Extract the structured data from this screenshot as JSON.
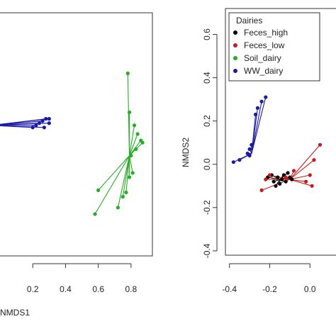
{
  "chart_data": [
    {
      "type": "scatter",
      "title": "",
      "xlabel": "NMDS1",
      "ylabel": "",
      "xlim": [
        0.0,
        0.9
      ],
      "ylim": [
        -0.42,
        0.7
      ],
      "xticks": [
        "0.2",
        "0.4",
        "0.6",
        "0.8"
      ],
      "xtick_values": [
        0.2,
        0.4,
        0.6,
        0.8
      ],
      "grid": false,
      "series": [
        {
          "color": "#1a1aa8",
          "centroid": [
            -0.05,
            0.18
          ],
          "points": [
            [
              0.3,
              0.21
            ],
            [
              0.28,
              0.21
            ],
            [
              0.26,
              0.2
            ],
            [
              0.24,
              0.19
            ],
            [
              0.22,
              0.18
            ],
            [
              0.27,
              0.17
            ],
            [
              0.2,
              0.17
            ],
            [
              0.3,
              0.19
            ]
          ]
        },
        {
          "color": "#22b022",
          "centroid": [
            0.79,
            0.04
          ],
          "points": [
            [
              0.78,
              0.42
            ],
            [
              0.79,
              0.24
            ],
            [
              0.82,
              0.18
            ],
            [
              0.84,
              0.14
            ],
            [
              0.86,
              0.11
            ],
            [
              0.87,
              0.1
            ],
            [
              0.83,
              0.07
            ],
            [
              0.8,
              0.04
            ],
            [
              0.81,
              -0.04
            ],
            [
              0.79,
              -0.06
            ],
            [
              0.6,
              -0.12
            ],
            [
              0.77,
              -0.13
            ],
            [
              0.75,
              -0.15
            ],
            [
              0.72,
              -0.2
            ],
            [
              0.58,
              -0.23
            ]
          ]
        }
      ]
    },
    {
      "type": "scatter",
      "title": "",
      "xlabel": "",
      "ylabel": "NMDS2",
      "xlim": [
        -0.42,
        0.08
      ],
      "ylim": [
        -0.42,
        0.7
      ],
      "xticks": [
        "-0.4",
        "-0.2",
        "0.0"
      ],
      "xtick_values": [
        -0.4,
        -0.2,
        0.0
      ],
      "yticks": [
        "-0.4",
        "-0.2",
        "0.0",
        "0.2",
        "0.4",
        "0.6"
      ],
      "ytick_values": [
        -0.4,
        -0.2,
        0.0,
        0.2,
        0.4,
        0.6
      ],
      "grid": false,
      "legend": {
        "title": "Dairies",
        "position": "top-left",
        "entries": [
          "Feces_high",
          "Feces_low",
          "Soil_dairy",
          "WW_dairy"
        ],
        "colors": [
          "#000000",
          "#cc1a1a",
          "#22b022",
          "#1a1aa8"
        ]
      },
      "series": [
        {
          "name": "Feces_high",
          "color": "#000000",
          "centroid": [
            -0.15,
            -0.07
          ],
          "points": [
            [
              -0.21,
              -0.06
            ],
            [
              -0.19,
              -0.05
            ],
            [
              -0.18,
              -0.08
            ],
            [
              -0.16,
              -0.06
            ],
            [
              -0.15,
              -0.09
            ],
            [
              -0.14,
              -0.07
            ],
            [
              -0.13,
              -0.05
            ],
            [
              -0.12,
              -0.08
            ],
            [
              -0.1,
              -0.06
            ],
            [
              -0.09,
              -0.07
            ],
            [
              -0.17,
              -0.1
            ],
            [
              -0.11,
              -0.04
            ]
          ]
        },
        {
          "name": "Feces_low",
          "color": "#cc1a1a",
          "centroid": [
            -0.1,
            -0.07
          ],
          "points": [
            [
              0.05,
              0.09
            ],
            [
              0.02,
              0.02
            ],
            [
              0.0,
              -0.05
            ],
            [
              -0.02,
              -0.08
            ],
            [
              -0.08,
              -0.03
            ],
            [
              -0.12,
              -0.06
            ],
            [
              -0.2,
              -0.05
            ],
            [
              -0.22,
              -0.07
            ],
            [
              -0.24,
              -0.12
            ],
            [
              0.01,
              -0.1
            ]
          ]
        },
        {
          "name": "WW_dairy",
          "color": "#1a1aa8",
          "centroid": [
            -0.29,
            0.05
          ],
          "points": [
            [
              -0.22,
              0.31
            ],
            [
              -0.24,
              0.29
            ],
            [
              -0.26,
              0.26
            ],
            [
              -0.27,
              0.23
            ],
            [
              -0.3,
              0.07
            ],
            [
              -0.3,
              0.04
            ],
            [
              -0.29,
              0.09
            ],
            [
              -0.31,
              0.05
            ],
            [
              -0.35,
              0.02
            ],
            [
              -0.38,
              0.01
            ]
          ]
        }
      ]
    }
  ]
}
